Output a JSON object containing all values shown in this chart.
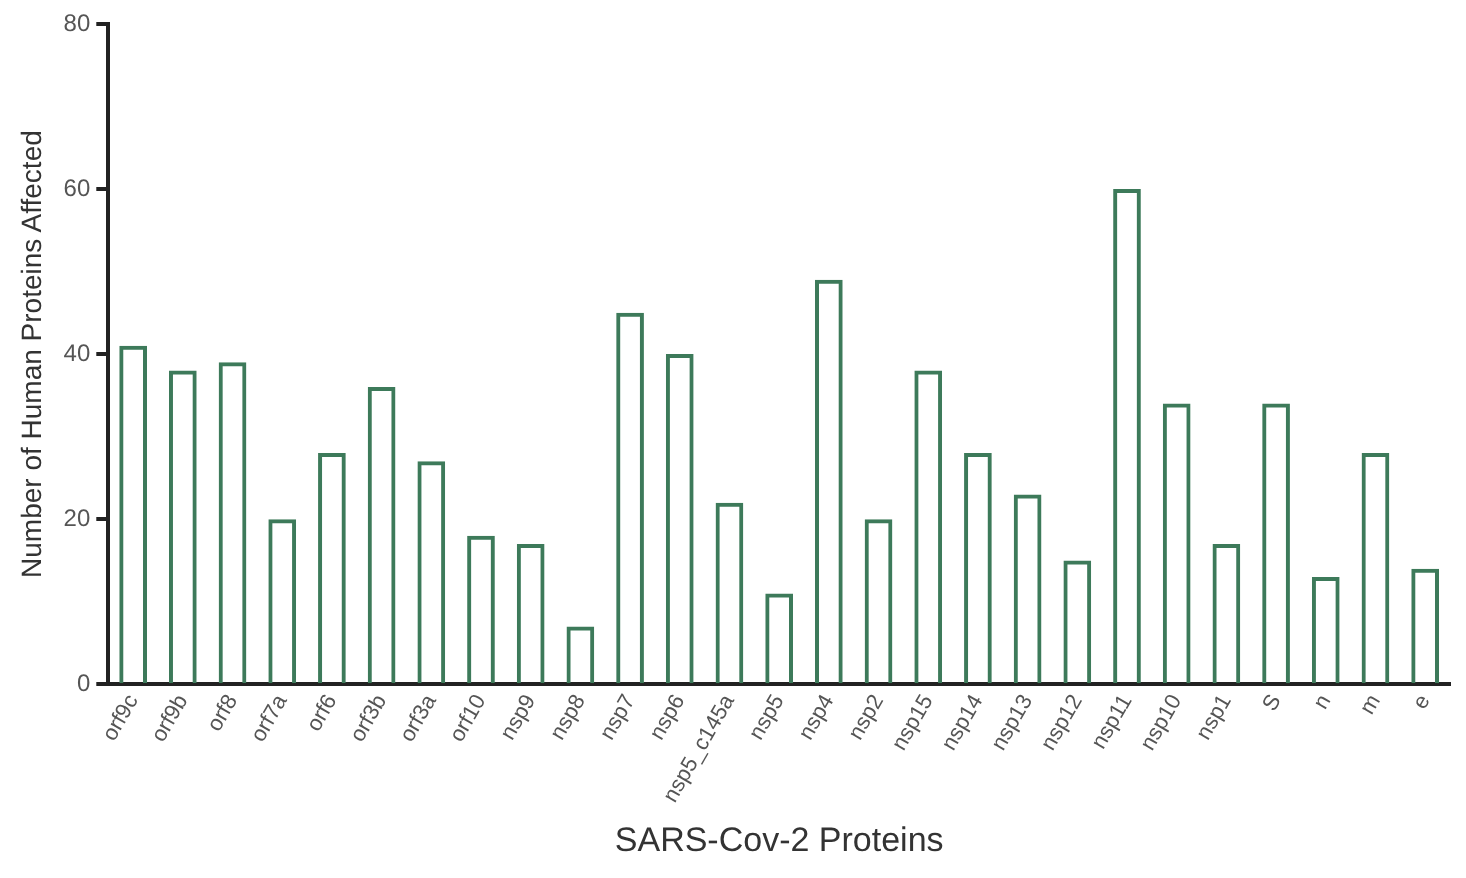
{
  "chart_data": {
    "type": "bar",
    "xlabel": "SARS-Cov-2 Proteins",
    "ylabel": "Number of Human Proteins Affected",
    "categories": [
      "orf9c",
      "orf9b",
      "orf8",
      "orf7a",
      "orf6",
      "orf3b",
      "orf3a",
      "orf10",
      "nsp9",
      "nsp8",
      "nsp7",
      "nsp6",
      "nsp5_c145a",
      "nsp5",
      "nsp4",
      "nsp2",
      "nsp15",
      "nsp14",
      "nsp13",
      "nsp12",
      "nsp11",
      "nsp10",
      "nsp1",
      "S",
      "n",
      "m",
      "e"
    ],
    "values": [
      41,
      38,
      39,
      20,
      28,
      36,
      27,
      18,
      17,
      7,
      45,
      40,
      22,
      11,
      49,
      20,
      38,
      28,
      23,
      15,
      60,
      34,
      17,
      34,
      13,
      28,
      14
    ],
    "color": "#3d7a5a",
    "ylim": [
      0,
      80
    ],
    "yticks": [
      0,
      20,
      40,
      60,
      80
    ],
    "grid": false,
    "legend": false
  }
}
